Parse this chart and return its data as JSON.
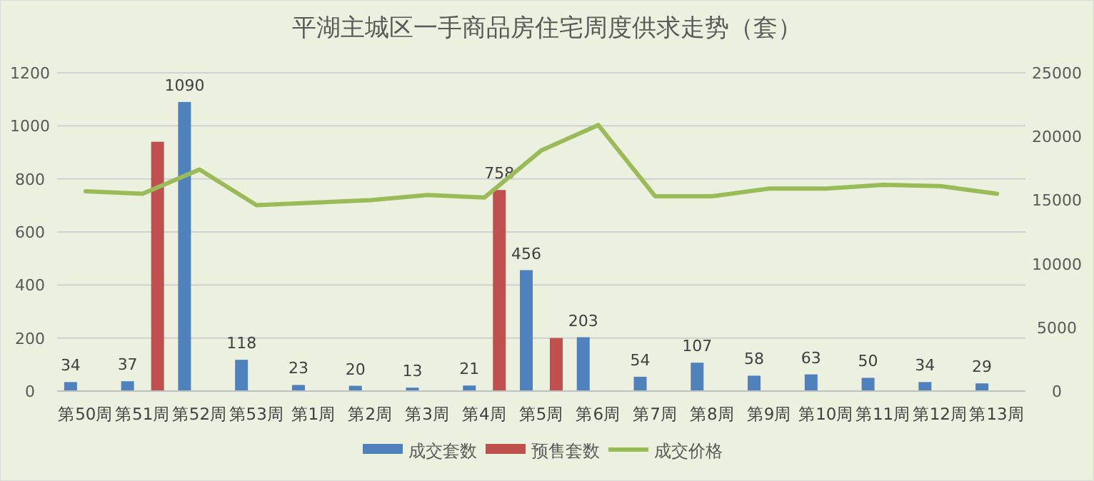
{
  "chart_data": {
    "type": "bar",
    "title": "平湖主城区一手商品房住宅周度供求走势（套）",
    "categories": [
      "第50周",
      "第51周",
      "第52周",
      "第53周",
      "第1周",
      "第2周",
      "第3周",
      "第4周",
      "第5周",
      "第6周",
      "第7周",
      "第8周",
      "第9周",
      "第10周",
      "第11周",
      "第12周",
      "第13周"
    ],
    "series": [
      {
        "name": "成交套数",
        "color": "#4f81bd",
        "values": [
          34,
          37,
          1090,
          118,
          23,
          20,
          13,
          21,
          456,
          203,
          54,
          107,
          58,
          63,
          50,
          34,
          29
        ],
        "value_labels": [
          "34",
          "37",
          "1090",
          "118",
          "23",
          "20",
          "13",
          "21",
          "456",
          "203",
          "54",
          "107",
          "58",
          "63",
          "50",
          "34",
          "29"
        ]
      },
      {
        "name": "预售套数",
        "color": "#c0504d",
        "values": [
          null,
          940,
          null,
          null,
          null,
          null,
          null,
          758,
          200,
          null,
          null,
          null,
          null,
          null,
          null,
          null,
          null
        ],
        "value_labels": [
          null,
          null,
          null,
          null,
          null,
          null,
          null,
          "758",
          null,
          null,
          null,
          null,
          null,
          null,
          null,
          null,
          null
        ]
      },
      {
        "name": "成交价格",
        "type": "line",
        "axis": "y2",
        "color": "#9bbb59",
        "values": [
          15700,
          15500,
          17400,
          14600,
          14800,
          15000,
          15400,
          15200,
          18900,
          20900,
          15300,
          15300,
          15900,
          15900,
          16200,
          16100,
          15500
        ]
      }
    ],
    "ylim": [
      0,
      1200
    ],
    "yticks": [
      0,
      200,
      400,
      600,
      800,
      1000,
      1200
    ],
    "y2lim": [
      0,
      25000
    ],
    "y2ticks": [
      0,
      5000,
      10000,
      15000,
      20000,
      25000
    ],
    "grid": "y",
    "legend": "bottom"
  }
}
